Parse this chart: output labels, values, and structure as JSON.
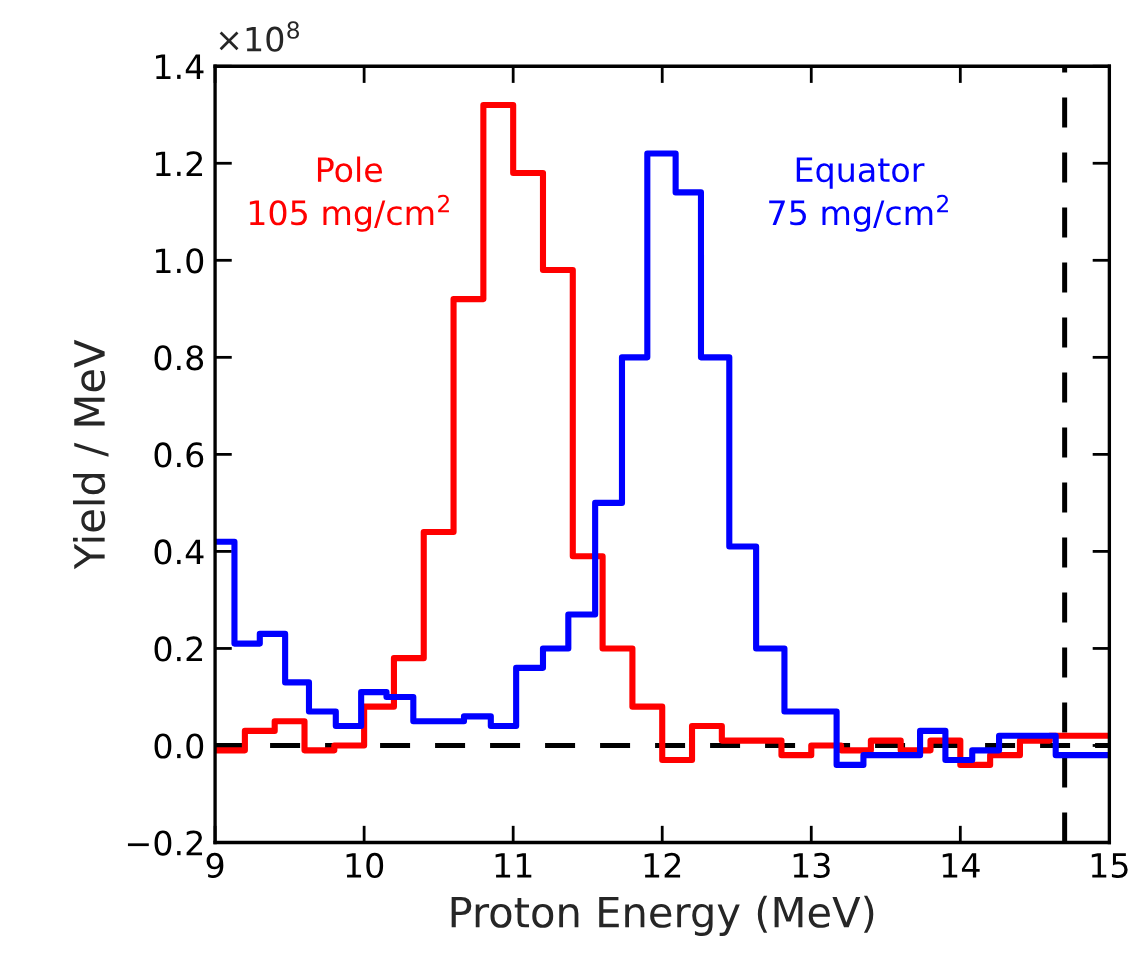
{
  "chart_data": {
    "type": "step",
    "xlabel": "Proton Energy (MeV)",
    "ylabel": "Yield / MeV",
    "xlim": [
      9,
      15
    ],
    "xticks": [
      9,
      10,
      11,
      12,
      13,
      14,
      15
    ],
    "ylim": [
      -0.2,
      1.4
    ],
    "yticks": [
      {
        "value": -0.2,
        "label": "−0.2"
      },
      {
        "value": 0,
        "label": "0.0"
      },
      0.2,
      0.4,
      0.6,
      0.8,
      {
        "value": 1.0,
        "label": "1.0"
      },
      1.2,
      1.4
    ],
    "annotations": [
      "×10$^{8}$"
    ],
    "grid": false,
    "legend": false,
    "ref_lines": [
      {
        "axis": "y",
        "value": 0,
        "color": "#000000",
        "line_style": "dashed"
      },
      {
        "axis": "x",
        "value": 14.7,
        "color": "#000000",
        "line_style": "dashed"
      }
    ],
    "series": [
      {
        "name": "Pole\n105 mg/cm$^{2}$",
        "color": "#ff0000",
        "x": [
          9.0,
          9.2,
          9.4,
          9.6,
          9.8,
          10.0,
          10.2,
          10.4,
          10.6,
          10.8,
          11.0,
          11.2,
          11.4,
          11.6,
          11.8,
          12.0,
          12.2,
          12.4,
          12.6,
          12.8,
          13.0,
          13.2,
          13.4,
          13.6,
          13.8,
          14.0,
          14.2,
          14.4,
          14.6,
          14.8,
          15.0
        ],
        "values": [
          -0.01,
          0.03,
          0.05,
          -0.01,
          0.0,
          0.08,
          0.18,
          0.44,
          0.92,
          1.32,
          1.18,
          0.98,
          0.39,
          0.2,
          0.08,
          -0.03,
          0.04,
          0.01,
          0.01,
          -0.02,
          0.0,
          -0.01,
          0.01,
          -0.01,
          0.01,
          -0.04,
          -0.02,
          0.01,
          0.02,
          0.02,
          0.02
        ]
      },
      {
        "name": "Equator\n75 mg/cm$^{2}$",
        "color": "#0000ff",
        "x": [
          9.0,
          9.13,
          9.3,
          9.47,
          9.63,
          9.81,
          9.98,
          10.15,
          10.33,
          10.49,
          10.67,
          10.85,
          11.02,
          11.2,
          11.37,
          11.55,
          11.73,
          11.9,
          12.09,
          12.26,
          12.45,
          12.63,
          12.82,
          12.99,
          13.17,
          13.35,
          13.55,
          13.73,
          13.9,
          14.08,
          14.26,
          14.45,
          14.64,
          14.81,
          15.0
        ],
        "values": [
          0.42,
          0.21,
          0.23,
          0.13,
          0.07,
          0.04,
          0.11,
          0.1,
          0.05,
          0.05,
          0.06,
          0.04,
          0.16,
          0.2,
          0.27,
          0.5,
          0.8,
          1.22,
          1.14,
          0.8,
          0.41,
          0.2,
          0.07,
          0.07,
          -0.04,
          -0.02,
          -0.02,
          0.03,
          -0.03,
          -0.01,
          0.02,
          0.02,
          -0.02,
          -0.02,
          -0.02
        ]
      }
    ]
  }
}
